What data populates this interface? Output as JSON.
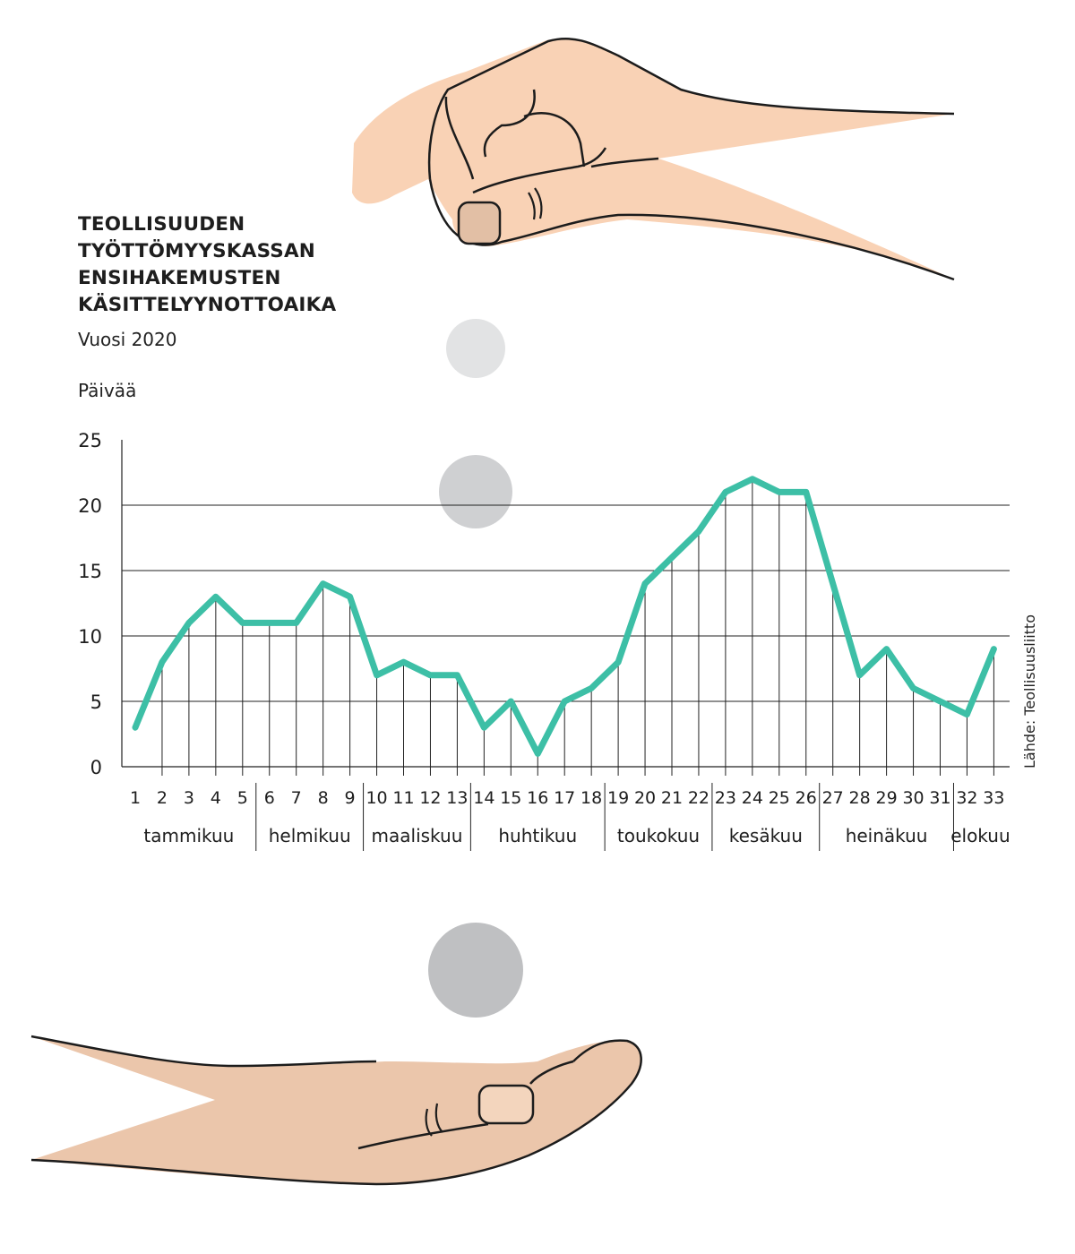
{
  "chart_data": {
    "type": "line",
    "title_lines": [
      "TEOLLISUUDEN",
      "TYÖTTÖMYYSKASSAN",
      "ENSIHAKEMUSTEN",
      "KÄSITTELYYNOTTOAIKA"
    ],
    "subtitle": "Vuosi 2020",
    "ylabel": "Päivää",
    "source": "Lähde: Teollisuusliitto",
    "ylim": [
      0,
      25
    ],
    "yticks": [
      0,
      5,
      10,
      15,
      20,
      25
    ],
    "gridlines": [
      5,
      10,
      15,
      20
    ],
    "x": [
      1,
      2,
      3,
      4,
      5,
      6,
      7,
      8,
      9,
      10,
      11,
      12,
      13,
      14,
      15,
      16,
      17,
      18,
      19,
      20,
      21,
      22,
      23,
      24,
      25,
      26,
      27,
      28,
      29,
      30,
      31,
      32,
      33
    ],
    "values": [
      3,
      8,
      11,
      13,
      11,
      11,
      11,
      14,
      13,
      7,
      8,
      7,
      7,
      3,
      5,
      1,
      5,
      6,
      8,
      14,
      16,
      18,
      21,
      22,
      21,
      21,
      14,
      7,
      9,
      6,
      5,
      4,
      9
    ],
    "months": [
      {
        "label": "tammikuu",
        "from": 1,
        "to": 5
      },
      {
        "label": "helmikuu",
        "from": 6,
        "to": 9
      },
      {
        "label": "maaliskuu",
        "from": 10,
        "to": 13
      },
      {
        "label": "huhtikuu",
        "from": 14,
        "to": 18
      },
      {
        "label": "toukokuu",
        "from": 19,
        "to": 22
      },
      {
        "label": "kesäkuu",
        "from": 23,
        "to": 26
      },
      {
        "label": "heinäkuu",
        "from": 27,
        "to": 31
      },
      {
        "label": "elokuu",
        "from": 32,
        "to": 33
      }
    ],
    "colors": {
      "line": "#3dbfa6",
      "grid": "#222222",
      "skin_top": "#f9d2b5",
      "skin_bottom": "#ebc6ab",
      "nail": "#e2bfa5",
      "coin_light": "#e2e3e4",
      "coin_mid": "#cfd0d2",
      "coin_dark": "#bfc0c2"
    }
  },
  "illustration": {
    "icons": [
      "pinching-hand-icon",
      "open-hand-icon",
      "coin-icon"
    ]
  }
}
